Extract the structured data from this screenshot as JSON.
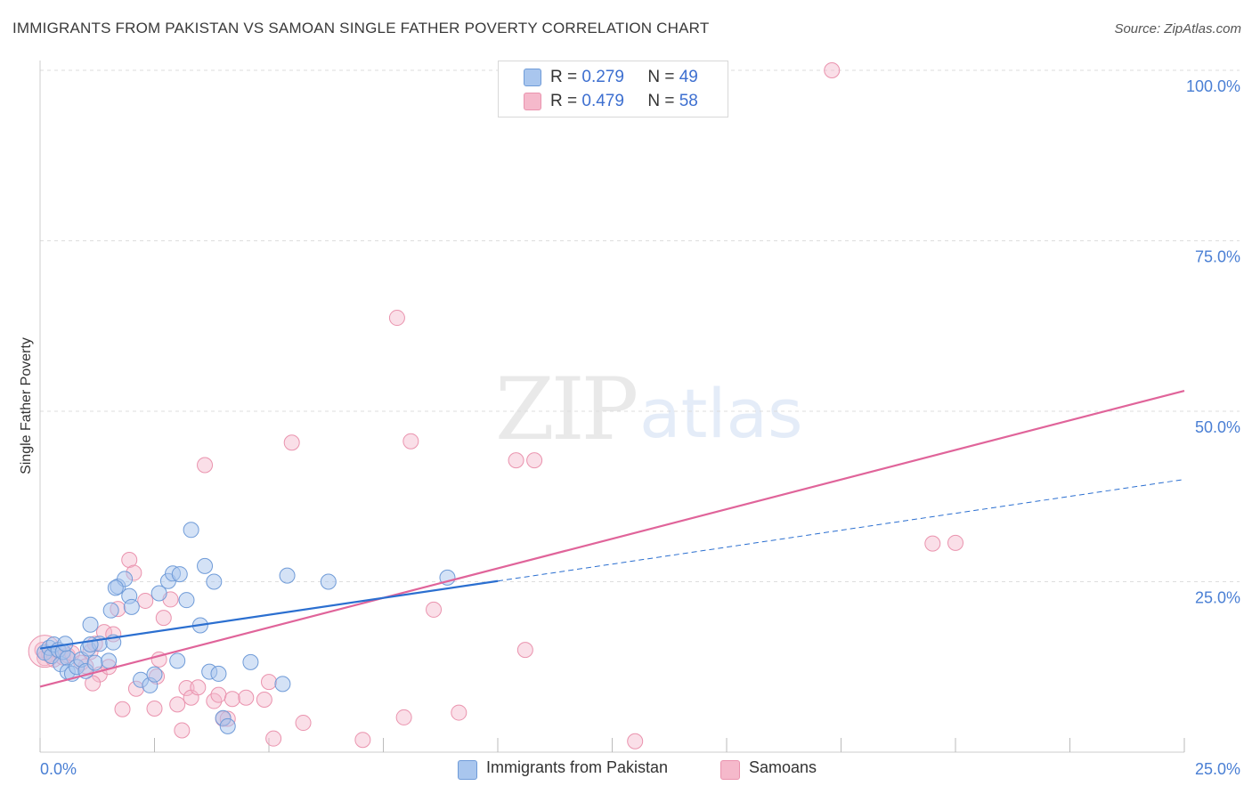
{
  "title": "IMMIGRANTS FROM PAKISTAN VS SAMOAN SINGLE FATHER POVERTY CORRELATION CHART",
  "source": "Source: ZipAtlas.com",
  "watermark": {
    "zip": "ZIP",
    "atlas": "atlas"
  },
  "legend": {
    "rows": [
      {
        "r_label": "R =",
        "r_value": "0.279",
        "n_label": "N =",
        "n_value": "49"
      },
      {
        "r_label": "R =",
        "r_value": "0.479",
        "n_label": "N =",
        "n_value": "58"
      }
    ]
  },
  "bottom_legend": {
    "series1": "Immigrants from Pakistan",
    "series2": "Samoans"
  },
  "colors": {
    "blue_fill": "#a9c6ee",
    "blue_stroke": "#6f9bd8",
    "blue_line": "#2b6fd0",
    "pink_fill": "#f5b9cb",
    "pink_stroke": "#ea93ae",
    "pink_line": "#e0649a",
    "tick_color": "#4a7fd4",
    "grid": "#dddddd"
  },
  "chart_data": {
    "type": "scatter",
    "title": "IMMIGRANTS FROM PAKISTAN VS SAMOAN SINGLE FATHER POVERTY CORRELATION CHART",
    "xlabel": "",
    "ylabel": "Single Father Poverty",
    "xlim": [
      0,
      25
    ],
    "ylim": [
      0,
      100
    ],
    "x_tick_labels": [
      {
        "value": 0,
        "label": "0.0%"
      },
      {
        "value": 25,
        "label": "25.0%"
      }
    ],
    "y_tick_labels": [
      {
        "value": 25,
        "label": "25.0%"
      },
      {
        "value": 50,
        "label": "50.0%"
      },
      {
        "value": 75,
        "label": "75.0%"
      },
      {
        "value": 100,
        "label": "100.0%"
      }
    ],
    "series": [
      {
        "name": "Immigrants from Pakistan",
        "R": 0.279,
        "N": 49,
        "trend": {
          "x0": 0,
          "y0": 15.2,
          "x1": 10,
          "y1": 25.1,
          "dash_to_x": 25,
          "dash_to_y": 40.0
        },
        "points": [
          [
            0.1,
            14.6
          ],
          [
            0.2,
            15.3
          ],
          [
            0.25,
            14.1
          ],
          [
            0.3,
            15.8
          ],
          [
            0.4,
            15.0
          ],
          [
            0.45,
            12.9
          ],
          [
            0.5,
            14.7
          ],
          [
            0.6,
            13.8
          ],
          [
            0.6,
            11.8
          ],
          [
            0.7,
            11.5
          ],
          [
            0.8,
            12.5
          ],
          [
            0.9,
            13.6
          ],
          [
            1.0,
            11.9
          ],
          [
            1.05,
            15.2
          ],
          [
            1.1,
            18.7
          ],
          [
            1.2,
            13.1
          ],
          [
            1.3,
            15.9
          ],
          [
            1.5,
            13.4
          ],
          [
            1.6,
            16.1
          ],
          [
            1.1,
            15.8
          ],
          [
            1.55,
            20.8
          ],
          [
            1.7,
            24.3
          ],
          [
            1.85,
            25.4
          ],
          [
            1.95,
            22.9
          ],
          [
            2.0,
            21.3
          ],
          [
            2.2,
            10.6
          ],
          [
            2.4,
            9.8
          ],
          [
            2.5,
            11.4
          ],
          [
            2.6,
            23.3
          ],
          [
            2.8,
            25.1
          ],
          [
            2.9,
            26.2
          ],
          [
            3.0,
            13.4
          ],
          [
            3.05,
            26.1
          ],
          [
            3.2,
            22.3
          ],
          [
            3.3,
            32.6
          ],
          [
            3.5,
            18.6
          ],
          [
            3.6,
            27.3
          ],
          [
            3.7,
            11.8
          ],
          [
            3.8,
            25.0
          ],
          [
            3.9,
            11.5
          ],
          [
            4.0,
            5.0
          ],
          [
            4.1,
            3.8
          ],
          [
            4.6,
            13.2
          ],
          [
            5.3,
            10.0
          ],
          [
            5.4,
            25.9
          ],
          [
            6.3,
            25.0
          ],
          [
            8.9,
            25.6
          ],
          [
            1.65,
            24.1
          ],
          [
            0.55,
            15.9
          ]
        ]
      },
      {
        "name": "Samoans",
        "R": 0.479,
        "N": 58,
        "trend": {
          "x0": 0,
          "y0": 9.6,
          "x1": 25,
          "y1": 53.0
        },
        "points": [
          [
            0.05,
            15.0
          ],
          [
            0.1,
            13.8
          ],
          [
            0.2,
            14.3
          ],
          [
            0.3,
            13.6
          ],
          [
            0.4,
            14.8
          ],
          [
            0.5,
            13.9
          ],
          [
            0.6,
            14.2
          ],
          [
            0.7,
            14.5
          ],
          [
            0.9,
            13.1
          ],
          [
            1.0,
            12.6
          ],
          [
            1.1,
            14.7
          ],
          [
            1.2,
            15.9
          ],
          [
            1.3,
            11.4
          ],
          [
            1.4,
            17.6
          ],
          [
            1.5,
            12.5
          ],
          [
            1.6,
            17.3
          ],
          [
            1.7,
            21.0
          ],
          [
            1.8,
            6.3
          ],
          [
            1.95,
            28.2
          ],
          [
            2.05,
            26.3
          ],
          [
            2.1,
            9.3
          ],
          [
            2.3,
            22.2
          ],
          [
            2.5,
            6.4
          ],
          [
            2.55,
            11.1
          ],
          [
            2.6,
            13.6
          ],
          [
            2.7,
            19.7
          ],
          [
            2.85,
            22.4
          ],
          [
            3.0,
            7.0
          ],
          [
            3.1,
            3.2
          ],
          [
            3.2,
            9.4
          ],
          [
            3.3,
            8.0
          ],
          [
            3.45,
            9.5
          ],
          [
            3.6,
            42.1
          ],
          [
            3.8,
            7.5
          ],
          [
            3.9,
            8.4
          ],
          [
            4.0,
            4.9
          ],
          [
            4.1,
            4.9
          ],
          [
            4.2,
            7.8
          ],
          [
            4.5,
            8.0
          ],
          [
            4.9,
            7.7
          ],
          [
            5.0,
            10.3
          ],
          [
            5.1,
            2.0
          ],
          [
            5.5,
            45.4
          ],
          [
            5.75,
            4.3
          ],
          [
            7.05,
            1.8
          ],
          [
            7.8,
            63.7
          ],
          [
            7.95,
            5.1
          ],
          [
            8.1,
            45.6
          ],
          [
            8.6,
            20.9
          ],
          [
            9.15,
            5.8
          ],
          [
            10.4,
            42.8
          ],
          [
            10.6,
            15.0
          ],
          [
            10.8,
            42.8
          ],
          [
            13.0,
            1.6
          ],
          [
            17.3,
            100.0
          ],
          [
            19.5,
            30.6
          ],
          [
            20.0,
            30.7
          ],
          [
            1.15,
            10.1
          ]
        ]
      }
    ]
  }
}
